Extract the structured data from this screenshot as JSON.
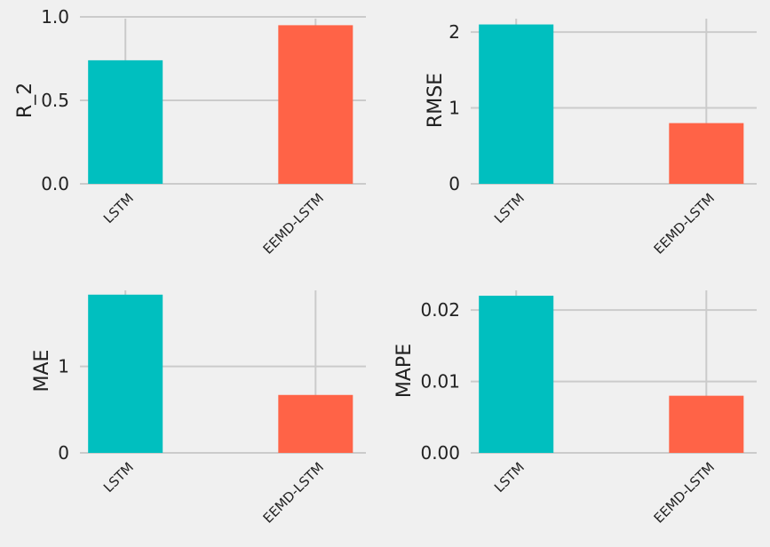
{
  "chart_data": [
    {
      "type": "bar",
      "categories": [
        "LSTM",
        "EEMD-LSTM"
      ],
      "values": [
        0.74,
        0.95
      ],
      "ylabel": "R_2",
      "ylim": [
        0,
        1.0
      ],
      "yticks": [
        0.0,
        0.5,
        1.0
      ],
      "ytick_labels": [
        "0.0",
        "0.5",
        "1.0"
      ],
      "grid": true
    },
    {
      "type": "bar",
      "categories": [
        "LSTM",
        "EEMD-LSTM"
      ],
      "values": [
        2.1,
        0.8
      ],
      "ylabel": "RMSE",
      "ylim": [
        0,
        2.2
      ],
      "yticks": [
        0,
        1,
        2
      ],
      "ytick_labels": [
        "0",
        "1",
        "2"
      ],
      "grid": true
    },
    {
      "type": "bar",
      "categories": [
        "LSTM",
        "EEMD-LSTM"
      ],
      "values": [
        1.83,
        0.67
      ],
      "ylabel": "MAE",
      "ylim": [
        0,
        1.9
      ],
      "yticks": [
        0,
        1
      ],
      "ytick_labels": [
        "0",
        "1"
      ],
      "grid": true
    },
    {
      "type": "bar",
      "categories": [
        "LSTM",
        "EEMD-LSTM"
      ],
      "values": [
        0.022,
        0.008
      ],
      "ylabel": "MAPE",
      "ylim": [
        0,
        0.023
      ],
      "yticks": [
        0.0,
        0.01,
        0.02
      ],
      "ytick_labels": [
        "0.00",
        "0.01",
        "0.02"
      ],
      "grid": true
    }
  ],
  "colors": {
    "background": "#f0f0f0",
    "bars": [
      "#00bfbf",
      "#ff6347"
    ],
    "grid": "#cbcbcb",
    "text": "#222222"
  }
}
